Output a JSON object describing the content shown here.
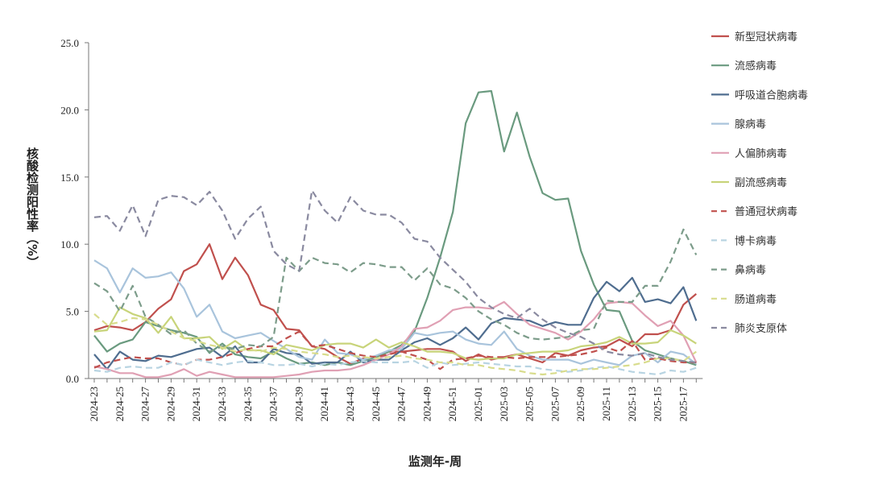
{
  "chart_data": {
    "type": "line",
    "xlabel": "监测年-周",
    "ylabel": "核酸检测阳性率（%）",
    "ylim": [
      0,
      25
    ],
    "yticks": [
      "0.0",
      "5.0",
      "10.0",
      "15.0",
      "20.0",
      "25.0"
    ],
    "x": [
      "2024-23",
      "2024-24",
      "2024-25",
      "2024-26",
      "2024-27",
      "2024-28",
      "2024-29",
      "2024-30",
      "2024-31",
      "2024-32",
      "2024-33",
      "2024-34",
      "2024-35",
      "2024-36",
      "2024-37",
      "2024-38",
      "2024-39",
      "2024-40",
      "2024-41",
      "2024-42",
      "2024-43",
      "2024-44",
      "2024-45",
      "2024-46",
      "2024-47",
      "2024-48",
      "2024-49",
      "2024-50",
      "2024-51",
      "2024-52",
      "2025-01",
      "2025-02",
      "2025-03",
      "2025-04",
      "2025-05",
      "2025-06",
      "2025-07",
      "2025-08",
      "2025-09",
      "2025-10",
      "2025-11",
      "2025-12",
      "2025-13",
      "2025-14",
      "2025-15",
      "2025-16",
      "2025-17",
      "2025-18"
    ],
    "xtick_labels": [
      "2024-23",
      "2024-25",
      "2024-27",
      "2024-29",
      "2024-31",
      "2024-33",
      "2024-35",
      "2024-37",
      "2024-39",
      "2024-41",
      "2024-43",
      "2024-45",
      "2024-47",
      "2024-49",
      "2024-51",
      "2025-01",
      "2025-03",
      "2025-05",
      "2025-07",
      "2025-09",
      "2025-11",
      "2025-13",
      "2025-15",
      "2025-17"
    ],
    "grid": false,
    "legend_position": "right",
    "series": [
      {
        "name": "新型冠状病毒",
        "color": "#c0504d",
        "dashed": false,
        "values": [
          3.6,
          3.9,
          3.8,
          3.6,
          4.2,
          5.2,
          5.9,
          8.0,
          8.5,
          10.0,
          7.4,
          9.0,
          7.7,
          5.5,
          5.1,
          3.7,
          3.6,
          2.4,
          2.2,
          1.6,
          1.1,
          1.5,
          1.6,
          2.0,
          2.0,
          2.1,
          2.2,
          2.2,
          2.0,
          1.3,
          1.8,
          1.4,
          1.6,
          1.8,
          1.5,
          1.2,
          1.9,
          1.7,
          2.1,
          2.3,
          2.4,
          2.9,
          2.4,
          3.3,
          3.3,
          3.6,
          5.5,
          6.3
        ]
      },
      {
        "name": "流感病毒",
        "color": "#6a9a7f",
        "dashed": false,
        "values": [
          3.2,
          2.0,
          2.6,
          2.9,
          4.2,
          3.9,
          3.6,
          3.4,
          3.1,
          1.9,
          2.6,
          1.8,
          1.6,
          1.5,
          2.0,
          1.5,
          1.1,
          1.2,
          1.0,
          1.2,
          1.0,
          1.3,
          1.6,
          2.0,
          2.5,
          3.5,
          6.0,
          9.0,
          12.4,
          19.0,
          21.3,
          21.4,
          16.9,
          19.8,
          16.5,
          13.8,
          13.3,
          13.4,
          9.5,
          7.0,
          5.1,
          5.0,
          2.8,
          2.1,
          1.8,
          1.5,
          1.3,
          1.0
        ]
      },
      {
        "name": "呼吸道合胞病毒",
        "color": "#4f6d8f",
        "dashed": false,
        "values": [
          1.8,
          0.7,
          2.0,
          1.4,
          1.3,
          1.7,
          1.6,
          1.9,
          2.2,
          2.3,
          1.6,
          2.4,
          1.2,
          1.2,
          2.2,
          1.9,
          1.8,
          1.1,
          1.2,
          1.2,
          2.0,
          1.2,
          1.4,
          1.4,
          2.1,
          2.7,
          3.0,
          2.5,
          3.0,
          3.8,
          2.9,
          4.1,
          4.5,
          4.4,
          4.3,
          3.9,
          4.2,
          4.0,
          4.0,
          6.0,
          7.2,
          6.5,
          7.5,
          5.7,
          5.9,
          5.6,
          6.8,
          4.3
        ]
      },
      {
        "name": "腺病毒",
        "color": "#a9c4dc",
        "dashed": false,
        "values": [
          8.8,
          8.2,
          6.4,
          8.2,
          7.5,
          7.6,
          7.9,
          6.7,
          4.6,
          5.5,
          3.5,
          3.0,
          3.2,
          3.4,
          2.8,
          2.2,
          1.6,
          1.4,
          2.9,
          1.9,
          1.8,
          1.4,
          1.7,
          2.1,
          2.2,
          3.4,
          3.2,
          3.4,
          3.5,
          2.9,
          2.6,
          2.5,
          3.5,
          2.2,
          1.7,
          1.4,
          1.4,
          1.4,
          1.1,
          1.4,
          1.2,
          1.0,
          1.7,
          1.9,
          1.2,
          2.0,
          1.8,
          1.1
        ]
      },
      {
        "name": "人偏肺病毒",
        "color": "#e0a0b4",
        "dashed": false,
        "values": [
          0.9,
          0.7,
          0.4,
          0.4,
          0.1,
          0.1,
          0.3,
          0.7,
          0.2,
          0.5,
          0.3,
          0.1,
          0.1,
          0.1,
          0.1,
          0.2,
          0.3,
          0.5,
          0.6,
          0.6,
          0.7,
          1.0,
          1.4,
          1.8,
          2.4,
          3.7,
          3.8,
          4.3,
          5.1,
          5.3,
          5.3,
          5.2,
          5.7,
          4.8,
          4.0,
          3.7,
          3.4,
          2.9,
          3.5,
          4.4,
          5.6,
          5.7,
          5.6,
          4.7,
          3.9,
          4.3,
          3.2,
          1.2
        ]
      },
      {
        "name": "副流感病毒",
        "color": "#c8d47a",
        "dashed": false,
        "values": [
          3.5,
          3.6,
          5.3,
          4.8,
          4.5,
          3.4,
          4.6,
          3.0,
          3.0,
          3.1,
          2.2,
          2.8,
          2.1,
          2.1,
          1.8,
          2.5,
          2.3,
          2.1,
          2.5,
          2.6,
          2.6,
          2.3,
          2.9,
          2.3,
          2.7,
          2.4,
          2.0,
          2.0,
          1.9,
          1.5,
          1.4,
          1.5,
          1.5,
          1.8,
          1.9,
          2.0,
          2.0,
          2.1,
          2.4,
          2.5,
          2.7,
          3.1,
          2.6,
          2.6,
          2.7,
          3.6,
          3.2,
          2.6
        ]
      },
      {
        "name": "普通冠状病毒",
        "color": "#c0504d",
        "dashed": true,
        "values": [
          0.8,
          1.2,
          1.4,
          1.6,
          1.5,
          1.5,
          1.2,
          1.0,
          1.4,
          1.4,
          1.6,
          1.9,
          2.2,
          2.4,
          2.4,
          3.0,
          3.5,
          2.4,
          2.5,
          2.2,
          1.9,
          1.7,
          1.6,
          1.8,
          2.0,
          1.7,
          1.4,
          0.7,
          1.4,
          1.5,
          1.7,
          1.6,
          1.6,
          1.5,
          1.6,
          1.6,
          1.6,
          1.7,
          1.8,
          2.0,
          2.3,
          2.0,
          2.8,
          1.4,
          1.5,
          1.3,
          1.2,
          1.2
        ]
      },
      {
        "name": "博卡病毒",
        "color": "#b8d4e2",
        "dashed": true,
        "values": [
          0.6,
          0.5,
          0.8,
          0.9,
          0.8,
          0.8,
          1.2,
          1.0,
          1.4,
          1.2,
          1.0,
          1.2,
          1.3,
          1.2,
          1.0,
          1.0,
          1.1,
          0.9,
          1.1,
          1.0,
          1.2,
          1.3,
          1.2,
          1.2,
          1.2,
          1.3,
          0.8,
          1.2,
          1.0,
          1.1,
          1.2,
          1.1,
          1.0,
          0.9,
          0.9,
          0.7,
          0.6,
          0.5,
          0.6,
          0.8,
          0.9,
          0.7,
          0.5,
          0.4,
          0.3,
          0.6,
          0.5,
          0.8
        ]
      },
      {
        "name": "鼻病毒",
        "color": "#7c9c8a",
        "dashed": true,
        "values": [
          7.1,
          6.5,
          5.0,
          6.9,
          4.6,
          4.0,
          3.3,
          3.6,
          2.6,
          2.0,
          2.4,
          2.2,
          2.5,
          2.4,
          3.1,
          9.0,
          8.0,
          9.0,
          8.6,
          8.5,
          7.9,
          8.6,
          8.5,
          8.3,
          8.3,
          7.3,
          8.2,
          7.0,
          6.7,
          6.0,
          5.0,
          4.4,
          4.0,
          3.4,
          3.0,
          2.9,
          3.0,
          3.1,
          3.6,
          3.7,
          5.8,
          5.7,
          5.7,
          6.9,
          6.9,
          8.7,
          11.1,
          9.2
        ]
      },
      {
        "name": "肠道病毒",
        "color": "#d8dc8c",
        "dashed": true,
        "values": [
          4.8,
          4.0,
          4.2,
          4.5,
          4.4,
          4.0,
          3.5,
          3.0,
          2.8,
          2.5,
          2.3,
          2.0,
          2.2,
          2.0,
          2.3,
          2.2,
          2.0,
          1.9,
          1.8,
          1.6,
          1.7,
          1.6,
          1.5,
          1.6,
          1.7,
          1.5,
          1.4,
          1.2,
          1.2,
          1.0,
          1.0,
          0.8,
          0.7,
          0.6,
          0.4,
          0.3,
          0.4,
          0.6,
          0.7,
          0.7,
          0.8,
          0.9,
          1.0,
          1.2,
          1.5,
          1.5,
          1.3,
          2.0
        ]
      },
      {
        "name": "肺炎支原体",
        "color": "#8a8aa0",
        "dashed": true,
        "values": [
          12.0,
          12.1,
          11.0,
          12.9,
          10.6,
          13.3,
          13.6,
          13.5,
          12.9,
          13.9,
          12.5,
          10.4,
          11.9,
          12.8,
          9.5,
          8.5,
          8.0,
          14.0,
          12.5,
          11.6,
          13.5,
          12.5,
          12.2,
          12.2,
          11.6,
          10.4,
          10.2,
          9.0,
          8.1,
          7.2,
          6.0,
          5.3,
          4.8,
          4.5,
          5.2,
          4.4,
          3.8,
          3.4,
          3.1,
          2.6,
          2.0,
          1.8,
          1.7,
          1.9,
          1.6,
          1.4,
          1.3,
          1.2
        ]
      }
    ]
  }
}
